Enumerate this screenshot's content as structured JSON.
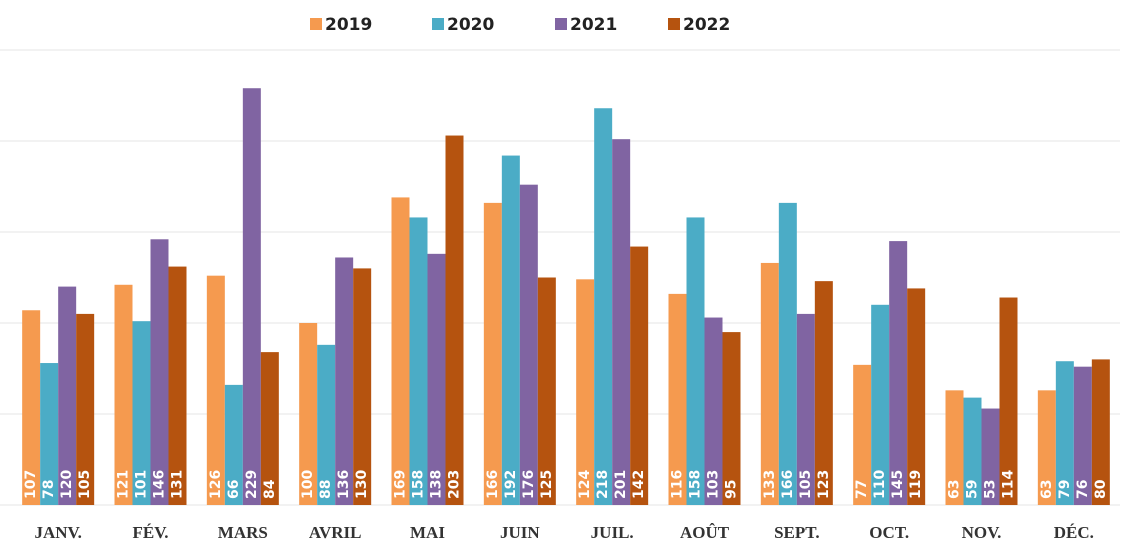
{
  "chart_data": {
    "type": "bar",
    "categories": [
      "JANV.",
      "FÉV.",
      "MARS",
      "AVRIL",
      "MAI",
      "JUIN",
      "JUIL.",
      "AOÛT",
      "SEPT.",
      "OCT.",
      "NOV.",
      "DÉC."
    ],
    "series": [
      {
        "name": "2019",
        "color": "#f59a4f",
        "values": [
          107,
          121,
          126,
          100,
          169,
          166,
          124,
          116,
          133,
          77,
          63,
          63
        ]
      },
      {
        "name": "2020",
        "color": "#4bacc6",
        "values": [
          78,
          101,
          66,
          88,
          158,
          192,
          218,
          158,
          166,
          110,
          59,
          79
        ]
      },
      {
        "name": "2021",
        "color": "#8064a2",
        "values": [
          120,
          146,
          229,
          136,
          138,
          176,
          201,
          103,
          105,
          145,
          53,
          76
        ]
      },
      {
        "name": "2022",
        "color": "#b5530f",
        "values": [
          105,
          131,
          84,
          130,
          203,
          125,
          142,
          95,
          123,
          119,
          114,
          80
        ]
      }
    ],
    "ylim": [
      0,
      250
    ],
    "yticks": [
      0,
      50,
      100,
      150,
      200,
      250
    ],
    "grid": true,
    "legend": "top"
  }
}
